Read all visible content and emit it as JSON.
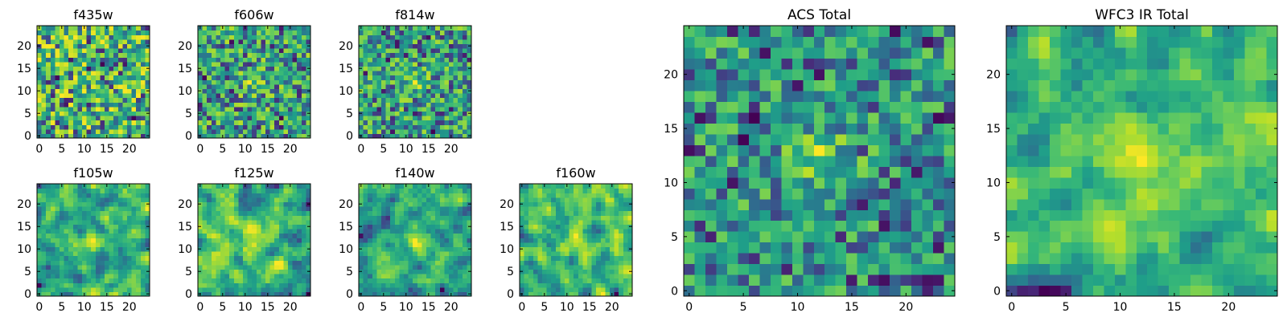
{
  "chart_data": [
    {
      "type": "heatmap",
      "title": "f435w",
      "x_ticks": [
        0,
        5,
        10,
        15,
        20
      ],
      "y_ticks": [
        0,
        5,
        10,
        15,
        20
      ],
      "xlim": [
        -0.5,
        24.5
      ],
      "ylim": [
        -0.5,
        24.5
      ],
      "grid": false,
      "grid_size": 25,
      "colormap": "viridis",
      "pattern": "noise",
      "seed": 11
    },
    {
      "type": "heatmap",
      "title": "f606w",
      "x_ticks": [
        0,
        5,
        10,
        15,
        20
      ],
      "y_ticks": [
        0,
        5,
        10,
        15,
        20
      ],
      "xlim": [
        -0.5,
        24.5
      ],
      "ylim": [
        -0.5,
        24.5
      ],
      "grid": false,
      "grid_size": 25,
      "colormap": "viridis",
      "pattern": "faint-center",
      "seed": 23
    },
    {
      "type": "heatmap",
      "title": "f814w",
      "x_ticks": [
        0,
        5,
        10,
        15,
        20
      ],
      "y_ticks": [
        0,
        5,
        10,
        15,
        20
      ],
      "xlim": [
        -0.5,
        24.5
      ],
      "ylim": [
        -0.5,
        24.5
      ],
      "grid": false,
      "grid_size": 25,
      "colormap": "viridis",
      "pattern": "faint-center",
      "seed": 37
    },
    {
      "type": "heatmap",
      "title": "f105w",
      "x_ticks": [
        0,
        5,
        10,
        15,
        20
      ],
      "y_ticks": [
        0,
        5,
        10,
        15,
        20
      ],
      "xlim": [
        -0.5,
        24.5
      ],
      "ylim": [
        -0.5,
        24.5
      ],
      "grid": false,
      "grid_size": 25,
      "colormap": "viridis",
      "pattern": "smooth-center",
      "seed": 41
    },
    {
      "type": "heatmap",
      "title": "f125w",
      "x_ticks": [
        0,
        5,
        10,
        15,
        20
      ],
      "y_ticks": [
        0,
        5,
        10,
        15,
        20
      ],
      "xlim": [
        -0.5,
        24.5
      ],
      "ylim": [
        -0.5,
        24.5
      ],
      "grid": false,
      "grid_size": 25,
      "colormap": "viridis",
      "pattern": "smooth-center",
      "seed": 53
    },
    {
      "type": "heatmap",
      "title": "f140w",
      "x_ticks": [
        0,
        5,
        10,
        15,
        20
      ],
      "y_ticks": [
        0,
        5,
        10,
        15,
        20
      ],
      "xlim": [
        -0.5,
        24.5
      ],
      "ylim": [
        -0.5,
        24.5
      ],
      "grid": false,
      "grid_size": 25,
      "colormap": "viridis",
      "pattern": "smooth-center",
      "seed": 67
    },
    {
      "type": "heatmap",
      "title": "f160w",
      "x_ticks": [
        0,
        5,
        10,
        15,
        20
      ],
      "y_ticks": [
        0,
        5,
        10,
        15,
        20
      ],
      "xlim": [
        -0.5,
        24.5
      ],
      "ylim": [
        -0.5,
        24.5
      ],
      "grid": false,
      "grid_size": 25,
      "colormap": "viridis",
      "pattern": "smooth-center",
      "seed": 79
    },
    {
      "type": "heatmap",
      "title": "ACS Total",
      "x_ticks": [
        0,
        5,
        10,
        15,
        20
      ],
      "y_ticks": [
        0,
        5,
        10,
        15,
        20
      ],
      "xlim": [
        -0.5,
        24.5
      ],
      "ylim": [
        -0.5,
        24.5
      ],
      "grid": false,
      "grid_size": 25,
      "colormap": "viridis",
      "pattern": "center",
      "seed": 83
    },
    {
      "type": "heatmap",
      "title": "WFC3 IR Total",
      "x_ticks": [
        0,
        5,
        10,
        15,
        20
      ],
      "y_ticks": [
        0,
        5,
        10,
        15,
        20
      ],
      "xlim": [
        -0.5,
        24.5
      ],
      "ylim": [
        -0.5,
        24.5
      ],
      "grid": false,
      "grid_size": 25,
      "colormap": "viridis",
      "pattern": "center-smooth",
      "seed": 97
    }
  ]
}
